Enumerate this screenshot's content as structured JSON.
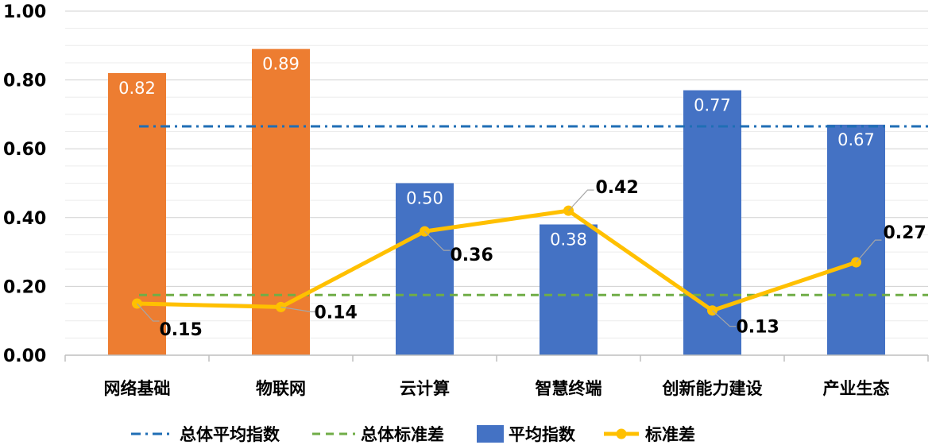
{
  "chart_data": {
    "type": "bar",
    "categories": [
      "网络基础",
      "物联网",
      "云计算",
      "智慧终端",
      "创新能力建设",
      "产业生态"
    ],
    "series": [
      {
        "name": "平均指数",
        "kind": "bar",
        "values": [
          0.82,
          0.89,
          0.5,
          0.38,
          0.77,
          0.67
        ]
      },
      {
        "name": "标准差",
        "kind": "line",
        "values": [
          0.15,
          0.14,
          0.36,
          0.42,
          0.13,
          0.27
        ]
      }
    ],
    "reference_lines": [
      {
        "name": "总体平均指数",
        "value": 0.665,
        "style": "dash-dot",
        "color": "#1F6EB5"
      },
      {
        "name": "总体标准差",
        "value": 0.175,
        "style": "dashed",
        "color": "#70AD47"
      }
    ],
    "bar_colors": [
      "#ED7D31",
      "#ED7D31",
      "#4472C4",
      "#4472C4",
      "#4472C4",
      "#4472C4"
    ],
    "bar_labels": [
      "0.82",
      "0.89",
      "0.50",
      "0.38",
      "0.77",
      "0.67"
    ],
    "sd_labels": [
      "0.15",
      "0.14",
      "0.36",
      "0.42",
      "0.13",
      "0.27"
    ],
    "line_color": "#FFC000",
    "ylim": [
      0,
      1.0
    ],
    "yticks": [
      "0.00",
      "0.20",
      "0.40",
      "0.60",
      "0.80",
      "1.00"
    ],
    "title": "",
    "xlabel": "",
    "ylabel": "",
    "legend": {
      "position": "bottom",
      "items": [
        {
          "label": "总体平均指数",
          "kind": "dash-dot",
          "color": "#1F6EB5"
        },
        {
          "label": "总体标准差",
          "kind": "dashed",
          "color": "#70AD47"
        },
        {
          "label": "平均指数",
          "kind": "bar",
          "color": "#4472C4"
        },
        {
          "label": "标准差",
          "kind": "line-marker",
          "color": "#FFC000"
        }
      ]
    }
  }
}
